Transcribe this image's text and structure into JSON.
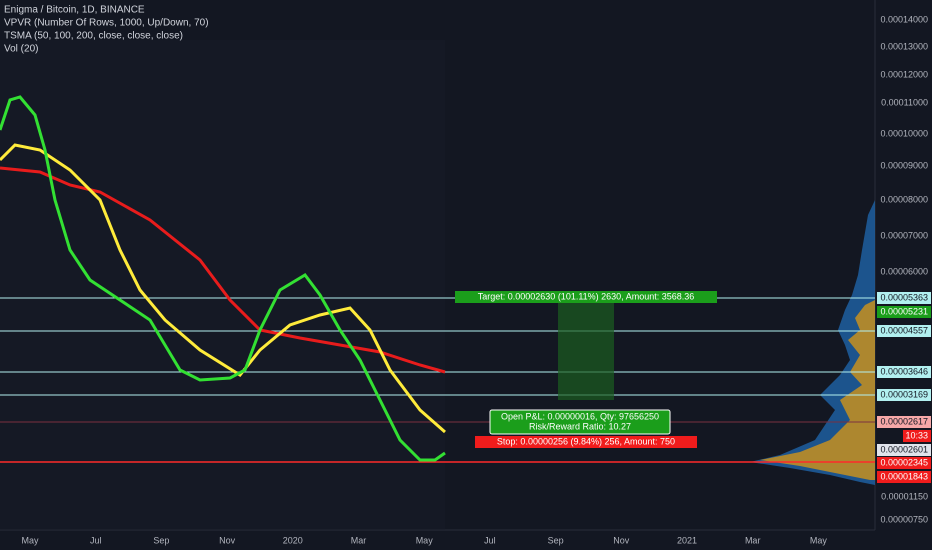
{
  "header": {
    "lines": [
      "Enigma / Bitcoin, 1D, BINANCE",
      "VPVR (Number Of Rows, 1000, Up/Down, 70)",
      "TSMA (50, 100, 200, close, close, close)",
      "Vol (20)"
    ]
  },
  "price_axis": [
    {
      "label": "0.00014000",
      "style": "plain"
    },
    {
      "label": "0.00013000",
      "style": "plain"
    },
    {
      "label": "0.00012000",
      "style": "plain"
    },
    {
      "label": "0.00011000",
      "style": "plain"
    },
    {
      "label": "0.00010000",
      "style": "plain"
    },
    {
      "label": "0.00009000",
      "style": "plain"
    },
    {
      "label": "0.00008000",
      "style": "plain"
    },
    {
      "label": "0.00007000",
      "style": "plain"
    },
    {
      "label": "0.00006000",
      "style": "plain"
    },
    {
      "label": "0.00005363",
      "style": "line"
    },
    {
      "label": "0.00005231",
      "style": "green"
    },
    {
      "label": "0.00004557",
      "style": "line"
    },
    {
      "label": "0.00003646",
      "style": "line"
    },
    {
      "label": "0.00003169",
      "style": "line"
    },
    {
      "label": "0.00002617",
      "style": "pink"
    },
    {
      "label": "10:33",
      "style": "red"
    },
    {
      "label": "0.00002601",
      "style": "white"
    },
    {
      "label": "0.00002345",
      "style": "red"
    },
    {
      "label": "0.00001843",
      "style": "red"
    },
    {
      "label": "0.00001150",
      "style": "plain"
    },
    {
      "label": "0.00000750",
      "style": "plain"
    }
  ],
  "time_axis": [
    "May",
    "Jul",
    "Sep",
    "Nov",
    "2020",
    "Mar",
    "May",
    "Jul",
    "Sep",
    "Nov",
    "2021",
    "Mar",
    "May"
  ],
  "position": {
    "target": "Target: 0.00002630 (101.11%) 2630, Amount: 3568.36",
    "pnl": "Open P&L: 0.00000016, Qty: 97656250",
    "ratio": "Risk/Reward Ratio: 10.27",
    "stop": "Stop: 0.00000256 (9.84%) 256, Amount: 750"
  }
}
